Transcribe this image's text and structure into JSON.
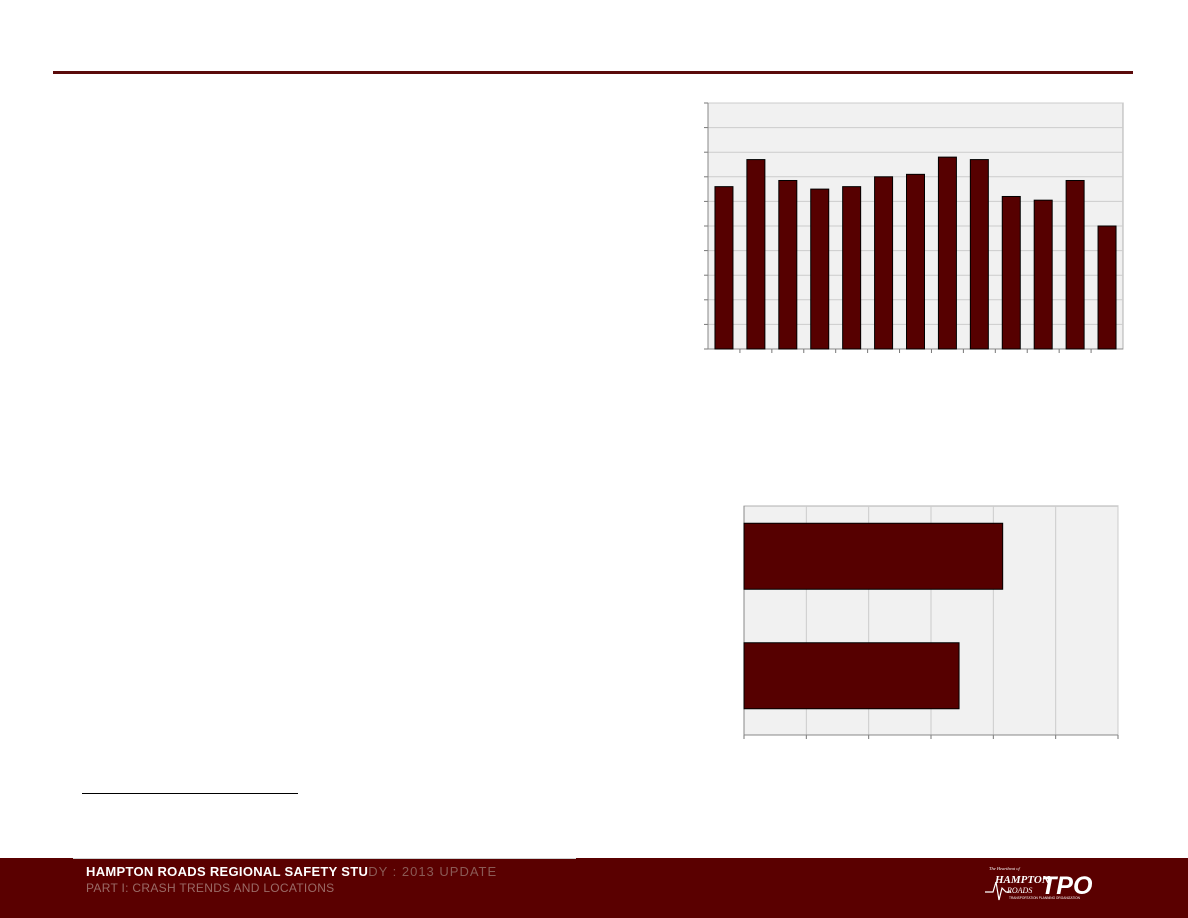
{
  "footer": {
    "title_main": "HAMPTON ROADS REGIONAL SAFETY STU",
    "title_rest": "DY : 2013 UPDATE",
    "subtitle": "PART I: CRASH TRENDS AND LOCATIONS"
  },
  "logo": {
    "small_text": "The Heartbeat of",
    "name_line1": "HAMPTON",
    "name_line2": "ROADS",
    "acronym": "TPO",
    "tagline": "TRANSPORTATION PLANNING ORGANIZATION"
  },
  "colors": {
    "accent": "#5a0000",
    "bar": "#560000",
    "plot_bg": "#f1f1f1",
    "grid": "#cccccc"
  },
  "chart_data": [
    {
      "type": "bar",
      "orientation": "vertical",
      "values": [
        6.6,
        7.7,
        6.85,
        6.5,
        6.6,
        7.0,
        7.1,
        7.8,
        7.7,
        6.2,
        6.05,
        6.85,
        5.0
      ],
      "ylim": [
        0,
        10
      ],
      "grid": true
    },
    {
      "type": "bar",
      "orientation": "horizontal",
      "values": [
        4.15,
        3.45
      ],
      "xlim": [
        0,
        6
      ],
      "grid": true
    }
  ]
}
